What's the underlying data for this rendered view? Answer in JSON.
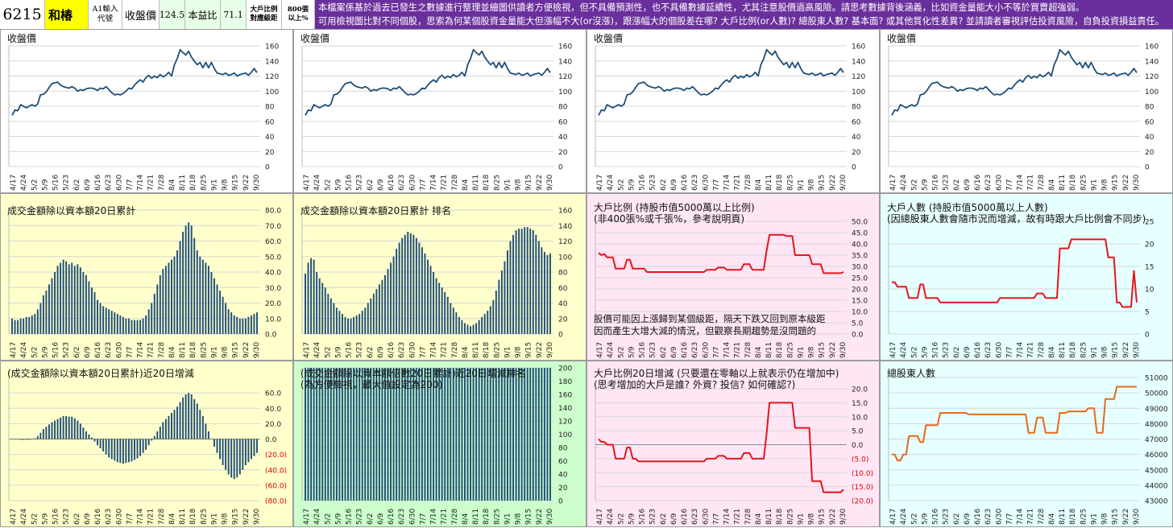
{
  "header": {
    "stock_code": "6215",
    "stock_name": "和椿",
    "input_hint": "A1輸入代號",
    "close_label": "收盤價",
    "close_value": "124.5",
    "pe_label": "本益比",
    "pe_value": "71.1",
    "holder_gap_label": "大戶比例對應級距",
    "lot_label": "800張以上%",
    "notice_line1": "本檔案係基於過去已發生之數據進行整理並繪圖供讀者方便檢視，但不具備預測性，也不具備數據延續性，尤其注意股價過高風險。請思考數據背後涵義，比如資金量能大小不等於買賣超強弱。",
    "notice_line2": "可用檢視圖比對不同個股，思索為何某個股資金量能大但漲幅不大(or沒漲)，跟漲幅大的個股差在哪? 大戶比例(or人數)? 總股東人數? 基本面? 或其他質化性差異? 並請讀者審視評估投資風險，自負投資損益責任。",
    "colors": {
      "code_bg": "#ffffff",
      "name_bg": "#ffff00",
      "notice_bg": "#6a2f9c"
    }
  },
  "x_labels": [
    "4/17",
    "4/24",
    "5/2",
    "5/9",
    "5/16",
    "5/23",
    "6/2",
    "6/9",
    "6/16",
    "6/23",
    "6/30",
    "7/7",
    "7/14",
    "7/21",
    "7/28",
    "8/4",
    "8/11",
    "8/18",
    "8/25",
    "9/1",
    "9/8",
    "9/15",
    "9/22",
    "9/30"
  ],
  "chart_data": [
    {
      "id": "close1",
      "type": "line",
      "title": "收盤價",
      "bg": "#ffffff",
      "color": "#1f4e79",
      "ylim": [
        0,
        160
      ],
      "yticks": [
        0,
        20,
        40,
        60,
        80,
        100,
        120,
        140,
        160
      ],
      "values": [
        68,
        75,
        74,
        82,
        80,
        78,
        80,
        82,
        80,
        83,
        95,
        96,
        99,
        105,
        110,
        111,
        112,
        108,
        106,
        105,
        104,
        106,
        104,
        100,
        102,
        101,
        103,
        104,
        104,
        103,
        101,
        104,
        103,
        106,
        102,
        98,
        95,
        96,
        95,
        97,
        100,
        104,
        103,
        108,
        112,
        115,
        112,
        118,
        121,
        117,
        120,
        118,
        122,
        119,
        121,
        125,
        120,
        135,
        143,
        155,
        151,
        148,
        153,
        145,
        140,
        135,
        138,
        131,
        138,
        131,
        138,
        130,
        124,
        123,
        122,
        124,
        121,
        122,
        124,
        120,
        122,
        123,
        124,
        121,
        125,
        130,
        124.5
      ]
    },
    {
      "id": "close2",
      "type": "line",
      "title": "收盤價",
      "bg": "#ffffff",
      "color": "#1f4e79",
      "ylim": [
        0,
        160
      ],
      "yticks": [
        0,
        20,
        40,
        60,
        80,
        100,
        120,
        140,
        160
      ],
      "values": [
        68,
        75,
        74,
        82,
        80,
        78,
        80,
        82,
        80,
        83,
        95,
        96,
        99,
        105,
        110,
        111,
        112,
        108,
        106,
        105,
        104,
        106,
        104,
        100,
        102,
        101,
        103,
        104,
        104,
        103,
        101,
        104,
        103,
        106,
        102,
        98,
        95,
        96,
        95,
        97,
        100,
        104,
        103,
        108,
        112,
        115,
        112,
        118,
        121,
        117,
        120,
        118,
        122,
        119,
        121,
        125,
        120,
        135,
        143,
        155,
        151,
        148,
        153,
        145,
        140,
        135,
        138,
        131,
        138,
        131,
        138,
        130,
        124,
        123,
        122,
        124,
        121,
        122,
        124,
        120,
        122,
        123,
        124,
        121,
        125,
        130,
        124.5
      ]
    },
    {
      "id": "close3",
      "type": "line",
      "title": "收盤價",
      "bg": "#ffffff",
      "color": "#1f4e79",
      "ylim": [
        0,
        160
      ],
      "yticks": [
        0,
        20,
        40,
        60,
        80,
        100,
        120,
        140,
        160
      ],
      "values": [
        68,
        75,
        74,
        82,
        80,
        78,
        80,
        82,
        80,
        83,
        95,
        96,
        99,
        105,
        110,
        111,
        112,
        108,
        106,
        105,
        104,
        106,
        104,
        100,
        102,
        101,
        103,
        104,
        104,
        103,
        101,
        104,
        103,
        106,
        102,
        98,
        95,
        96,
        95,
        97,
        100,
        104,
        103,
        108,
        112,
        115,
        112,
        118,
        121,
        117,
        120,
        118,
        122,
        119,
        121,
        125,
        120,
        135,
        143,
        155,
        151,
        148,
        153,
        145,
        140,
        135,
        138,
        131,
        138,
        131,
        138,
        130,
        124,
        123,
        122,
        124,
        121,
        122,
        124,
        120,
        122,
        123,
        124,
        121,
        125,
        130,
        124.5
      ]
    },
    {
      "id": "close4",
      "type": "line",
      "title": "收盤價",
      "bg": "#ffffff",
      "color": "#1f4e79",
      "ylim": [
        0,
        160
      ],
      "yticks": [
        0,
        20,
        40,
        60,
        80,
        100,
        120,
        140,
        160
      ],
      "values": [
        68,
        75,
        74,
        82,
        80,
        78,
        80,
        82,
        80,
        83,
        95,
        96,
        99,
        105,
        110,
        111,
        112,
        108,
        106,
        105,
        104,
        106,
        104,
        100,
        102,
        101,
        103,
        104,
        104,
        103,
        101,
        104,
        103,
        106,
        102,
        98,
        95,
        96,
        95,
        97,
        100,
        104,
        103,
        108,
        112,
        115,
        112,
        118,
        121,
        117,
        120,
        118,
        122,
        119,
        121,
        125,
        120,
        135,
        143,
        155,
        151,
        148,
        153,
        145,
        140,
        135,
        138,
        131,
        138,
        131,
        138,
        130,
        124,
        123,
        122,
        124,
        121,
        122,
        124,
        120,
        122,
        123,
        124,
        121,
        125,
        130,
        124.5
      ]
    },
    {
      "id": "turnover",
      "type": "bar",
      "title": "成交金額除以資本額20日累計",
      "bg": "#ffffcc",
      "color": "#1f4e79",
      "ylim": [
        0,
        80
      ],
      "yticks": [
        "0.0",
        "10.0",
        "20.0",
        "30.0",
        "40.0",
        "50.0",
        "60.0",
        "70.0",
        "80.0"
      ],
      "values": [
        10,
        9,
        9,
        10,
        10,
        11,
        11,
        12,
        13,
        16,
        20,
        25,
        28,
        32,
        36,
        40,
        44,
        46,
        48,
        47,
        45,
        46,
        44,
        45,
        43,
        40,
        38,
        34,
        30,
        27,
        22,
        20,
        18,
        17,
        16,
        15,
        14,
        13,
        12,
        11,
        10,
        10,
        9,
        9,
        9,
        9,
        10,
        12,
        16,
        20,
        26,
        32,
        38,
        42,
        44,
        46,
        48,
        50,
        54,
        60,
        66,
        70,
        72,
        70,
        62,
        54,
        50,
        48,
        46,
        44,
        40,
        36,
        32,
        28,
        24,
        20,
        16,
        14,
        12,
        11,
        10,
        10,
        10,
        11,
        12,
        13,
        14
      ]
    },
    {
      "id": "turnover_rank",
      "type": "bar",
      "title": "成交金額除以資本額20日累計 排名",
      "bg": "#ffffcc",
      "color": "#1f4e79",
      "ylim": [
        0,
        160
      ],
      "yticks": [
        "0",
        "20",
        "40",
        "60",
        "80",
        "100",
        "120",
        "140",
        "160"
      ],
      "values": [
        78,
        92,
        98,
        96,
        80,
        72,
        66,
        60,
        52,
        46,
        40,
        34,
        30,
        26,
        22,
        20,
        20,
        22,
        24,
        26,
        30,
        34,
        40,
        46,
        52,
        58,
        64,
        70,
        76,
        84,
        92,
        100,
        110,
        118,
        124,
        128,
        132,
        130,
        128,
        124,
        118,
        112,
        104,
        96,
        88,
        80,
        72,
        66,
        60,
        54,
        48,
        40,
        34,
        28,
        22,
        18,
        14,
        12,
        10,
        12,
        14,
        18,
        22,
        26,
        30,
        36,
        44,
        56,
        70,
        82,
        94,
        108,
        120,
        128,
        134,
        136,
        136,
        138,
        138,
        136,
        134,
        128,
        120,
        112,
        106,
        102,
        104
      ]
    },
    {
      "id": "holder_ratio",
      "type": "line",
      "title": "大戶比例 (持股市值5000萬以上比例)",
      "title2": "(非400張%或千張%，參考說明頁)",
      "note": "股價可能因上漲歸到某個級距，隔天下跌又回到原本級距",
      "note2": "因而產生大增大減的情況，但觀察長期趨勢是沒問題的",
      "bg": "#ffe6f5",
      "color": "#e8141b",
      "ylim": [
        0,
        50
      ],
      "yticks": [
        "0.0",
        "5.0",
        "10.0",
        "15.0",
        "20.0",
        "25.0",
        "30.0",
        "35.0",
        "40.0",
        "45.0",
        "50.0"
      ],
      "values": [
        36,
        35,
        35.5,
        34,
        34,
        34,
        29,
        29,
        29,
        29,
        33,
        33,
        29,
        29,
        29,
        29,
        29,
        27.5,
        27.5,
        27.5,
        27.5,
        27.5,
        27.5,
        27.5,
        27.5,
        27.5,
        27.5,
        27.5,
        27.5,
        27.5,
        27.5,
        27.5,
        27.5,
        27.5,
        27.5,
        27.5,
        27.5,
        27.5,
        28.5,
        28.5,
        28.5,
        28.5,
        29.5,
        29.5,
        29.5,
        28.5,
        28.5,
        28.5,
        28.5,
        28.5,
        28.5,
        31,
        31,
        31,
        28.5,
        28.5,
        28.5,
        28.5,
        28.5,
        37,
        44,
        44,
        44,
        44,
        44,
        44,
        43.5,
        43.5,
        43.5,
        35,
        35,
        35,
        35,
        35,
        35,
        31,
        31,
        31,
        31,
        27,
        27,
        27,
        27,
        27,
        27,
        27,
        27.5
      ]
    },
    {
      "id": "holder_count",
      "type": "line",
      "title": "大戶人數 (持股市值5000萬以上人數)",
      "title2": "(因總股東人數會隨市況而增減，故有時跟大戶比例會不同步)",
      "bg": "#e6ffff",
      "color": "#e8141b",
      "ylim": [
        0,
        25
      ],
      "yticks": [
        "0",
        "5",
        "10",
        "15",
        "20",
        "25"
      ],
      "values": [
        11.5,
        11.5,
        10.5,
        10.5,
        10.5,
        10.5,
        8,
        8,
        8,
        8,
        11,
        11,
        8,
        8,
        8,
        8,
        8,
        7,
        7,
        7,
        7,
        7,
        7,
        7,
        7,
        7,
        7,
        7,
        7,
        7,
        7,
        7,
        7,
        7,
        7,
        7,
        7,
        7,
        8,
        8,
        8,
        8,
        8,
        8,
        8,
        8,
        8,
        8,
        8,
        8,
        8,
        9,
        9,
        9,
        8,
        8,
        8,
        8,
        8,
        19,
        19,
        19,
        19,
        21,
        21,
        21,
        21,
        21,
        21,
        21,
        21,
        21,
        21,
        21,
        21,
        21,
        17,
        17,
        17,
        7,
        7,
        6,
        6,
        6,
        6,
        14,
        7
      ]
    },
    {
      "id": "turnover_change",
      "type": "bar",
      "title": "(成交金額除以資本額20日累計)近20日增減",
      "bg": "#ffffcc",
      "color": "#1f4e79",
      "ylim": [
        -80,
        80
      ],
      "yticks": [
        "(80.0)",
        "(60.0)",
        "(40.0)",
        "(20.0)",
        "0.0",
        "20.0",
        "40.0",
        "60.0"
      ],
      "values": [
        0,
        0,
        0,
        -1,
        -1,
        -1,
        -1,
        0,
        1,
        4,
        8,
        13,
        16,
        19,
        22,
        24,
        26,
        28,
        30,
        30,
        29,
        29,
        27,
        24,
        20,
        15,
        10,
        6,
        2,
        -3,
        -8,
        -12,
        -16,
        -20,
        -24,
        -26,
        -28,
        -30,
        -31,
        -32,
        -31,
        -30,
        -29,
        -27,
        -25,
        -22,
        -18,
        -14,
        -8,
        -2,
        4,
        10,
        16,
        22,
        26,
        30,
        34,
        38,
        42,
        48,
        54,
        58,
        60,
        58,
        52,
        46,
        38,
        30,
        20,
        10,
        0,
        -10,
        -18,
        -26,
        -34,
        -40,
        -46,
        -50,
        -52,
        -50,
        -46,
        -40,
        -34,
        -30,
        -26,
        -22,
        -18
      ]
    },
    {
      "id": "turnover_change_rank",
      "type": "bar",
      "title": "(成交金額除以資本額倍數20日累計)近20日增減排名",
      "title2": "(為方便檢視，最大值設定為200)",
      "bg": "#ccffcc",
      "color": "#1f4e79",
      "ylim": [
        0,
        200
      ],
      "yticks": [
        "0",
        "20",
        "40",
        "60",
        "80",
        "100",
        "120",
        "140",
        "160",
        "180",
        "200"
      ],
      "values": [
        200,
        200,
        200,
        200,
        200,
        200,
        200,
        200,
        200,
        200,
        200,
        200,
        200,
        200,
        200,
        200,
        200,
        200,
        200,
        200,
        200,
        200,
        200,
        200,
        200,
        200,
        200,
        200,
        200,
        200,
        200,
        200,
        200,
        200,
        200,
        200,
        200,
        200,
        200,
        200,
        200,
        200,
        200,
        200,
        200,
        200,
        200,
        200,
        200,
        200,
        200,
        200,
        200,
        200,
        200,
        200,
        200,
        200,
        200,
        200,
        200,
        200,
        200,
        200,
        200,
        200,
        200,
        200,
        200,
        200,
        200,
        200,
        200,
        200,
        200,
        200,
        200,
        200,
        200,
        200,
        200,
        200,
        200,
        200,
        200,
        200,
        200
      ]
    },
    {
      "id": "holder_ratio_change",
      "type": "line",
      "title": "大戶比例20日增減 (只要還在零軸以上就表示仍在增加中)",
      "title2": "(思考增加的大戶是誰? 外資? 投信? 如何確認?)",
      "bg": "#ffe6f5",
      "color": "#e8141b",
      "ylim": [
        -20,
        20
      ],
      "yticks": [
        "(20.0)",
        "(15.0)",
        "(10.0)",
        "(5.0)",
        "0.0",
        "5.0",
        "10.0",
        "15.0",
        "20.0"
      ],
      "values": [
        2,
        1,
        1,
        0,
        0,
        0,
        -5,
        -5,
        -5,
        -5,
        -1,
        -1,
        -5,
        -5,
        -6,
        -6,
        -6,
        -6,
        -6,
        -6,
        -6,
        -6,
        -6,
        -6,
        -6,
        -6,
        -6,
        -6,
        -6,
        -6,
        -6,
        -6,
        -6,
        -6,
        -6,
        -6,
        -6,
        -6,
        -5,
        -5,
        -5,
        -5,
        -4,
        -4,
        -4,
        -5,
        -5,
        -5,
        -5,
        -5,
        -5,
        -3,
        -3,
        -3,
        -5,
        -5,
        -5,
        -5,
        -5,
        4,
        15,
        15,
        15,
        15,
        15,
        15,
        15,
        15,
        15,
        6,
        6,
        6,
        6,
        6,
        6,
        -13,
        -13,
        -13,
        -13,
        -17,
        -17,
        -17,
        -17,
        -17,
        -17,
        -17,
        -16
      ]
    },
    {
      "id": "total_holders",
      "type": "line",
      "title": "總股東人數",
      "bg": "#e6ffff",
      "color": "#e6691c",
      "ylim": [
        43000,
        51000
      ],
      "yticks": [
        "43000",
        "44000",
        "45000",
        "46000",
        "47000",
        "48000",
        "49000",
        "50000",
        "51000"
      ],
      "values": [
        46000,
        46000,
        45600,
        45600,
        46000,
        46000,
        47200,
        47200,
        47200,
        47200,
        46800,
        46800,
        47900,
        47900,
        47900,
        47900,
        47900,
        48700,
        48700,
        48700,
        48700,
        48700,
        48700,
        48700,
        48700,
        48700,
        48700,
        48600,
        48600,
        48600,
        48600,
        48600,
        48600,
        48600,
        48600,
        48600,
        48600,
        48600,
        48600,
        48600,
        48600,
        48600,
        48600,
        48600,
        48600,
        48600,
        48600,
        48600,
        47400,
        47400,
        47400,
        48400,
        48400,
        48400,
        47400,
        47400,
        47400,
        47400,
        47400,
        48700,
        48700,
        48700,
        48800,
        48800,
        48800,
        48800,
        48800,
        48800,
        48800,
        49000,
        49000,
        49000,
        47400,
        47400,
        47400,
        49600,
        49600,
        49600,
        49600,
        50400,
        50400,
        50400,
        50400,
        50400,
        50400,
        50400,
        50400
      ]
    }
  ]
}
